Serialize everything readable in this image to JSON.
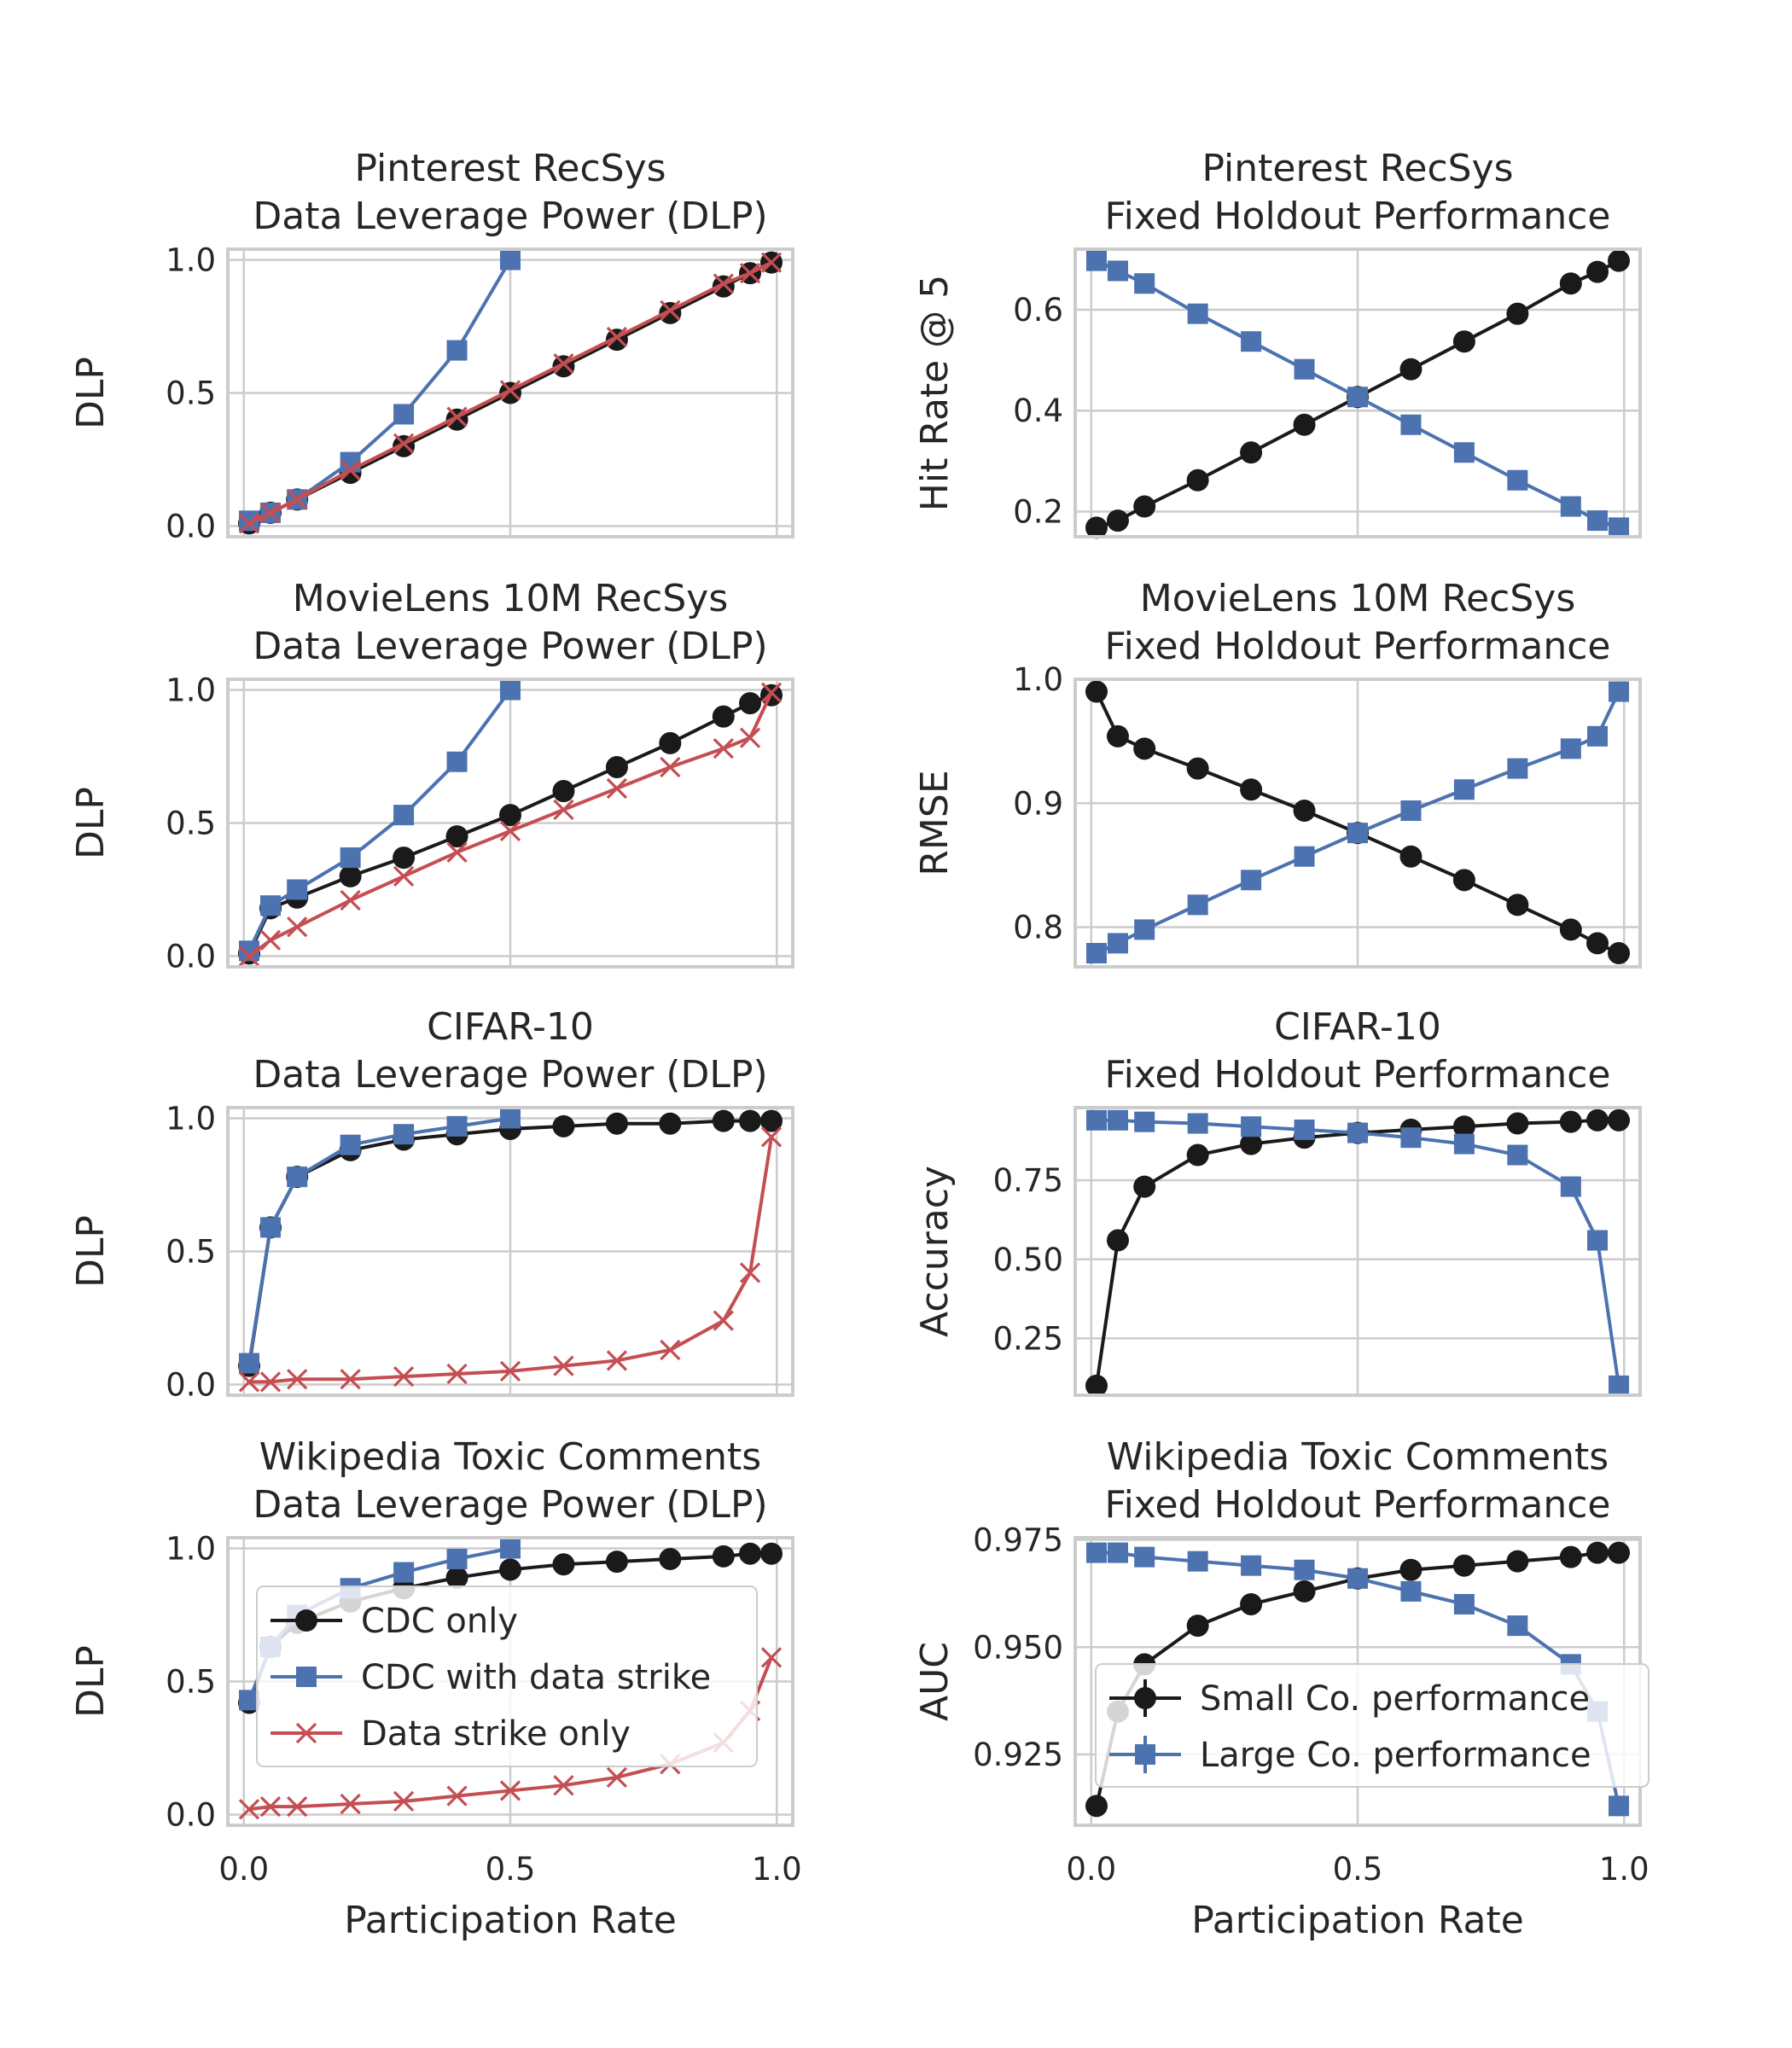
{
  "colors": {
    "black": "#1a1a1a",
    "blue": "#4c72b0",
    "red": "#c44e52",
    "grid": "#cccccc",
    "frame": "#cccccc"
  },
  "common": {
    "xlabel": "Participation Rate",
    "x_ticks": [
      "0.0",
      "0.5",
      "1.0"
    ]
  },
  "legends": {
    "dlp": [
      {
        "label": "CDC only",
        "color": "#1a1a1a",
        "marker": "circle"
      },
      {
        "label": "CDC with data strike",
        "color": "#4c72b0",
        "marker": "square"
      },
      {
        "label": "Data strike only",
        "color": "#c44e52",
        "marker": "x"
      }
    ],
    "perf": [
      {
        "label": "Small Co. performance",
        "color": "#1a1a1a",
        "marker": "circle"
      },
      {
        "label": "Large Co. performance",
        "color": "#4c72b0",
        "marker": "square"
      }
    ]
  },
  "chart_data": [
    {
      "type": "line",
      "title": "Pinterest RecSys\nData Leverage Power (DLP)",
      "xlabel": "",
      "ylabel": "DLP",
      "xlim": [
        -0.03,
        1.03
      ],
      "ylim": [
        -0.04,
        1.04
      ],
      "yticks": [
        0.0,
        0.5,
        1.0
      ],
      "ytick_labels": [
        "0.0",
        "0.5",
        "1.0"
      ],
      "grid": true,
      "legend": "none",
      "series": [
        {
          "name": "CDC only",
          "color": "#1a1a1a",
          "marker": "circle",
          "x": [
            0.01,
            0.05,
            0.1,
            0.2,
            0.3,
            0.4,
            0.5,
            0.6,
            0.7,
            0.8,
            0.9,
            0.95,
            0.99
          ],
          "y": [
            0.01,
            0.05,
            0.1,
            0.2,
            0.3,
            0.4,
            0.5,
            0.6,
            0.7,
            0.8,
            0.9,
            0.95,
            0.99
          ]
        },
        {
          "name": "CDC with data strike",
          "color": "#4c72b0",
          "marker": "square",
          "x": [
            0.01,
            0.05,
            0.1,
            0.2,
            0.3,
            0.4,
            0.5
          ],
          "y": [
            0.02,
            0.05,
            0.1,
            0.24,
            0.42,
            0.66,
            1.0
          ]
        },
        {
          "name": "Data strike only",
          "color": "#c44e52",
          "marker": "x",
          "x": [
            0.01,
            0.05,
            0.1,
            0.2,
            0.3,
            0.4,
            0.5,
            0.6,
            0.7,
            0.8,
            0.9,
            0.95,
            0.99
          ],
          "y": [
            0.01,
            0.05,
            0.1,
            0.21,
            0.31,
            0.41,
            0.51,
            0.61,
            0.71,
            0.81,
            0.91,
            0.95,
            0.99
          ]
        }
      ]
    },
    {
      "type": "line",
      "title": "Pinterest RecSys\nFixed Holdout Performance",
      "xlabel": "",
      "ylabel": "Hit Rate @ 5",
      "xlim": [
        -0.03,
        1.03
      ],
      "ylim": [
        0.15,
        0.72
      ],
      "yticks": [
        0.2,
        0.4,
        0.6
      ],
      "ytick_labels": [
        "0.2",
        "0.4",
        "0.6"
      ],
      "grid": true,
      "legend": "none",
      "series": [
        {
          "name": "Small Co. performance",
          "color": "#1a1a1a",
          "marker": "circle",
          "x": [
            0.01,
            0.05,
            0.1,
            0.2,
            0.3,
            0.4,
            0.5,
            0.6,
            0.7,
            0.8,
            0.9,
            0.95,
            0.99
          ],
          "y": [
            0.168,
            0.182,
            0.21,
            0.262,
            0.317,
            0.372,
            0.427,
            0.482,
            0.537,
            0.592,
            0.652,
            0.675,
            0.697
          ]
        },
        {
          "name": "Large Co. performance",
          "color": "#4c72b0",
          "marker": "square",
          "x": [
            0.01,
            0.05,
            0.1,
            0.2,
            0.3,
            0.4,
            0.5,
            0.6,
            0.7,
            0.8,
            0.9,
            0.95,
            0.99
          ],
          "y": [
            0.697,
            0.677,
            0.652,
            0.592,
            0.537,
            0.482,
            0.427,
            0.372,
            0.317,
            0.262,
            0.21,
            0.182,
            0.168
          ]
        }
      ]
    },
    {
      "type": "line",
      "title": "MovieLens 10M RecSys\nData Leverage Power (DLP)",
      "xlabel": "",
      "ylabel": "DLP",
      "xlim": [
        -0.03,
        1.03
      ],
      "ylim": [
        -0.04,
        1.04
      ],
      "yticks": [
        0.0,
        0.5,
        1.0
      ],
      "ytick_labels": [
        "0.0",
        "0.5",
        "1.0"
      ],
      "grid": true,
      "legend": "none",
      "series": [
        {
          "name": "CDC only",
          "color": "#1a1a1a",
          "marker": "circle",
          "x": [
            0.01,
            0.05,
            0.1,
            0.2,
            0.3,
            0.4,
            0.5,
            0.6,
            0.7,
            0.8,
            0.9,
            0.95,
            0.99
          ],
          "y": [
            0.01,
            0.18,
            0.22,
            0.3,
            0.37,
            0.45,
            0.53,
            0.62,
            0.71,
            0.8,
            0.9,
            0.95,
            0.98
          ]
        },
        {
          "name": "CDC with data strike",
          "color": "#4c72b0",
          "marker": "square",
          "x": [
            0.01,
            0.05,
            0.1,
            0.2,
            0.3,
            0.4,
            0.5
          ],
          "y": [
            0.02,
            0.19,
            0.25,
            0.37,
            0.53,
            0.73,
            1.0
          ]
        },
        {
          "name": "Data strike only",
          "color": "#c44e52",
          "marker": "x",
          "x": [
            0.01,
            0.05,
            0.1,
            0.2,
            0.3,
            0.4,
            0.5,
            0.6,
            0.7,
            0.8,
            0.9,
            0.95,
            0.99
          ],
          "y": [
            0.0,
            0.06,
            0.11,
            0.21,
            0.3,
            0.39,
            0.47,
            0.55,
            0.63,
            0.71,
            0.78,
            0.82,
            0.99
          ]
        }
      ]
    },
    {
      "type": "line",
      "title": "MovieLens 10M RecSys\nFixed Holdout Performance",
      "xlabel": "",
      "ylabel": "RMSE",
      "xlim": [
        -0.03,
        1.03
      ],
      "ylim": [
        0.768,
        1.0
      ],
      "yticks": [
        0.8,
        0.9,
        1.0
      ],
      "ytick_labels": [
        "0.8",
        "0.9",
        "1.0"
      ],
      "grid": true,
      "legend": "none",
      "series": [
        {
          "name": "Small Co. performance",
          "color": "#1a1a1a",
          "marker": "circle",
          "x": [
            0.01,
            0.05,
            0.1,
            0.2,
            0.3,
            0.4,
            0.5,
            0.6,
            0.7,
            0.8,
            0.9,
            0.95,
            0.99
          ],
          "y": [
            0.99,
            0.954,
            0.944,
            0.928,
            0.911,
            0.894,
            0.876,
            0.857,
            0.838,
            0.818,
            0.798,
            0.787,
            0.779
          ]
        },
        {
          "name": "Large Co. performance",
          "color": "#4c72b0",
          "marker": "square",
          "x": [
            0.01,
            0.05,
            0.1,
            0.2,
            0.3,
            0.4,
            0.5,
            0.6,
            0.7,
            0.8,
            0.9,
            0.95,
            0.99
          ],
          "y": [
            0.779,
            0.787,
            0.798,
            0.818,
            0.838,
            0.857,
            0.876,
            0.894,
            0.911,
            0.928,
            0.944,
            0.954,
            0.99
          ]
        }
      ]
    },
    {
      "type": "line",
      "title": "CIFAR-10\nData Leverage Power (DLP)",
      "xlabel": "",
      "ylabel": "DLP",
      "xlim": [
        -0.03,
        1.03
      ],
      "ylim": [
        -0.04,
        1.04
      ],
      "yticks": [
        0.0,
        0.5,
        1.0
      ],
      "ytick_labels": [
        "0.0",
        "0.5",
        "1.0"
      ],
      "grid": true,
      "legend": "none",
      "series": [
        {
          "name": "CDC only",
          "color": "#1a1a1a",
          "marker": "circle",
          "x": [
            0.01,
            0.05,
            0.1,
            0.2,
            0.3,
            0.4,
            0.5,
            0.6,
            0.7,
            0.8,
            0.9,
            0.95,
            0.99
          ],
          "y": [
            0.07,
            0.59,
            0.78,
            0.88,
            0.92,
            0.94,
            0.96,
            0.97,
            0.98,
            0.98,
            0.99,
            0.99,
            0.99
          ]
        },
        {
          "name": "CDC with data strike",
          "color": "#4c72b0",
          "marker": "square",
          "x": [
            0.01,
            0.05,
            0.1,
            0.2,
            0.3,
            0.4,
            0.5
          ],
          "y": [
            0.08,
            0.59,
            0.78,
            0.9,
            0.94,
            0.97,
            1.0
          ]
        },
        {
          "name": "Data strike only",
          "color": "#c44e52",
          "marker": "x",
          "x": [
            0.01,
            0.05,
            0.1,
            0.2,
            0.3,
            0.4,
            0.5,
            0.6,
            0.7,
            0.8,
            0.9,
            0.95,
            0.99
          ],
          "y": [
            0.01,
            0.01,
            0.02,
            0.02,
            0.03,
            0.04,
            0.05,
            0.07,
            0.09,
            0.13,
            0.24,
            0.42,
            0.93
          ]
        }
      ]
    },
    {
      "type": "line",
      "title": "CIFAR-10\nFixed Holdout Performance",
      "xlabel": "",
      "ylabel": "Accuracy",
      "xlim": [
        -0.03,
        1.03
      ],
      "ylim": [
        0.07,
        0.98
      ],
      "yticks": [
        0.25,
        0.5,
        0.75
      ],
      "ytick_labels": [
        "0.25",
        "0.50",
        "0.75"
      ],
      "grid": true,
      "legend": "none",
      "series": [
        {
          "name": "Small Co. performance",
          "color": "#1a1a1a",
          "marker": "circle",
          "x": [
            0.01,
            0.05,
            0.1,
            0.2,
            0.3,
            0.4,
            0.5,
            0.6,
            0.7,
            0.8,
            0.9,
            0.95,
            0.99
          ],
          "y": [
            0.1,
            0.56,
            0.73,
            0.83,
            0.865,
            0.885,
            0.9,
            0.91,
            0.92,
            0.93,
            0.935,
            0.94,
            0.94
          ]
        },
        {
          "name": "Large Co. performance",
          "color": "#4c72b0",
          "marker": "square",
          "x": [
            0.01,
            0.05,
            0.1,
            0.2,
            0.3,
            0.4,
            0.5,
            0.6,
            0.7,
            0.8,
            0.9,
            0.95,
            0.99
          ],
          "y": [
            0.94,
            0.94,
            0.935,
            0.93,
            0.92,
            0.91,
            0.9,
            0.885,
            0.865,
            0.83,
            0.73,
            0.56,
            0.1
          ]
        }
      ]
    },
    {
      "type": "line",
      "title": "Wikipedia Toxic Comments\nData Leverage Power (DLP)",
      "xlabel": "Participation Rate",
      "ylabel": "DLP",
      "xlim": [
        -0.03,
        1.03
      ],
      "ylim": [
        -0.04,
        1.04
      ],
      "yticks": [
        0.0,
        0.5,
        1.0
      ],
      "ytick_labels": [
        "0.0",
        "0.5",
        "1.0"
      ],
      "grid": true,
      "legend": "center-left",
      "series": [
        {
          "name": "CDC only",
          "color": "#1a1a1a",
          "marker": "circle",
          "x": [
            0.01,
            0.05,
            0.1,
            0.2,
            0.3,
            0.4,
            0.5,
            0.6,
            0.7,
            0.8,
            0.9,
            0.95,
            0.99
          ],
          "y": [
            0.42,
            0.63,
            0.72,
            0.8,
            0.85,
            0.89,
            0.92,
            0.94,
            0.95,
            0.96,
            0.97,
            0.98,
            0.98
          ]
        },
        {
          "name": "CDC with data strike",
          "color": "#4c72b0",
          "marker": "square",
          "x": [
            0.01,
            0.05,
            0.1,
            0.2,
            0.3,
            0.4,
            0.5
          ],
          "y": [
            0.43,
            0.63,
            0.75,
            0.85,
            0.91,
            0.96,
            1.0
          ]
        },
        {
          "name": "Data strike only",
          "color": "#c44e52",
          "marker": "x",
          "x": [
            0.01,
            0.05,
            0.1,
            0.2,
            0.3,
            0.4,
            0.5,
            0.6,
            0.7,
            0.8,
            0.9,
            0.95,
            0.99
          ],
          "y": [
            0.02,
            0.03,
            0.03,
            0.04,
            0.05,
            0.07,
            0.09,
            0.11,
            0.14,
            0.19,
            0.27,
            0.39,
            0.59
          ]
        }
      ]
    },
    {
      "type": "line",
      "title": "Wikipedia Toxic Comments\nFixed Holdout Performance",
      "xlabel": "Participation Rate",
      "ylabel": "AUC",
      "xlim": [
        -0.03,
        1.03
      ],
      "ylim": [
        0.9085,
        0.9755
      ],
      "yticks": [
        0.925,
        0.95,
        0.975
      ],
      "ytick_labels": [
        "0.925",
        "0.950",
        "0.975"
      ],
      "grid": true,
      "legend": "bottom-right",
      "series": [
        {
          "name": "Small Co. performance",
          "color": "#1a1a1a",
          "marker": "circle",
          "x": [
            0.01,
            0.05,
            0.1,
            0.2,
            0.3,
            0.4,
            0.5,
            0.6,
            0.7,
            0.8,
            0.9,
            0.95,
            0.99
          ],
          "y": [
            0.913,
            0.935,
            0.946,
            0.955,
            0.96,
            0.963,
            0.966,
            0.968,
            0.969,
            0.97,
            0.971,
            0.972,
            0.972
          ]
        },
        {
          "name": "Large Co. performance",
          "color": "#4c72b0",
          "marker": "square",
          "x": [
            0.01,
            0.05,
            0.1,
            0.2,
            0.3,
            0.4,
            0.5,
            0.6,
            0.7,
            0.8,
            0.9,
            0.95,
            0.99
          ],
          "y": [
            0.972,
            0.972,
            0.971,
            0.97,
            0.969,
            0.968,
            0.966,
            0.963,
            0.96,
            0.955,
            0.946,
            0.935,
            0.913
          ]
        }
      ]
    }
  ]
}
